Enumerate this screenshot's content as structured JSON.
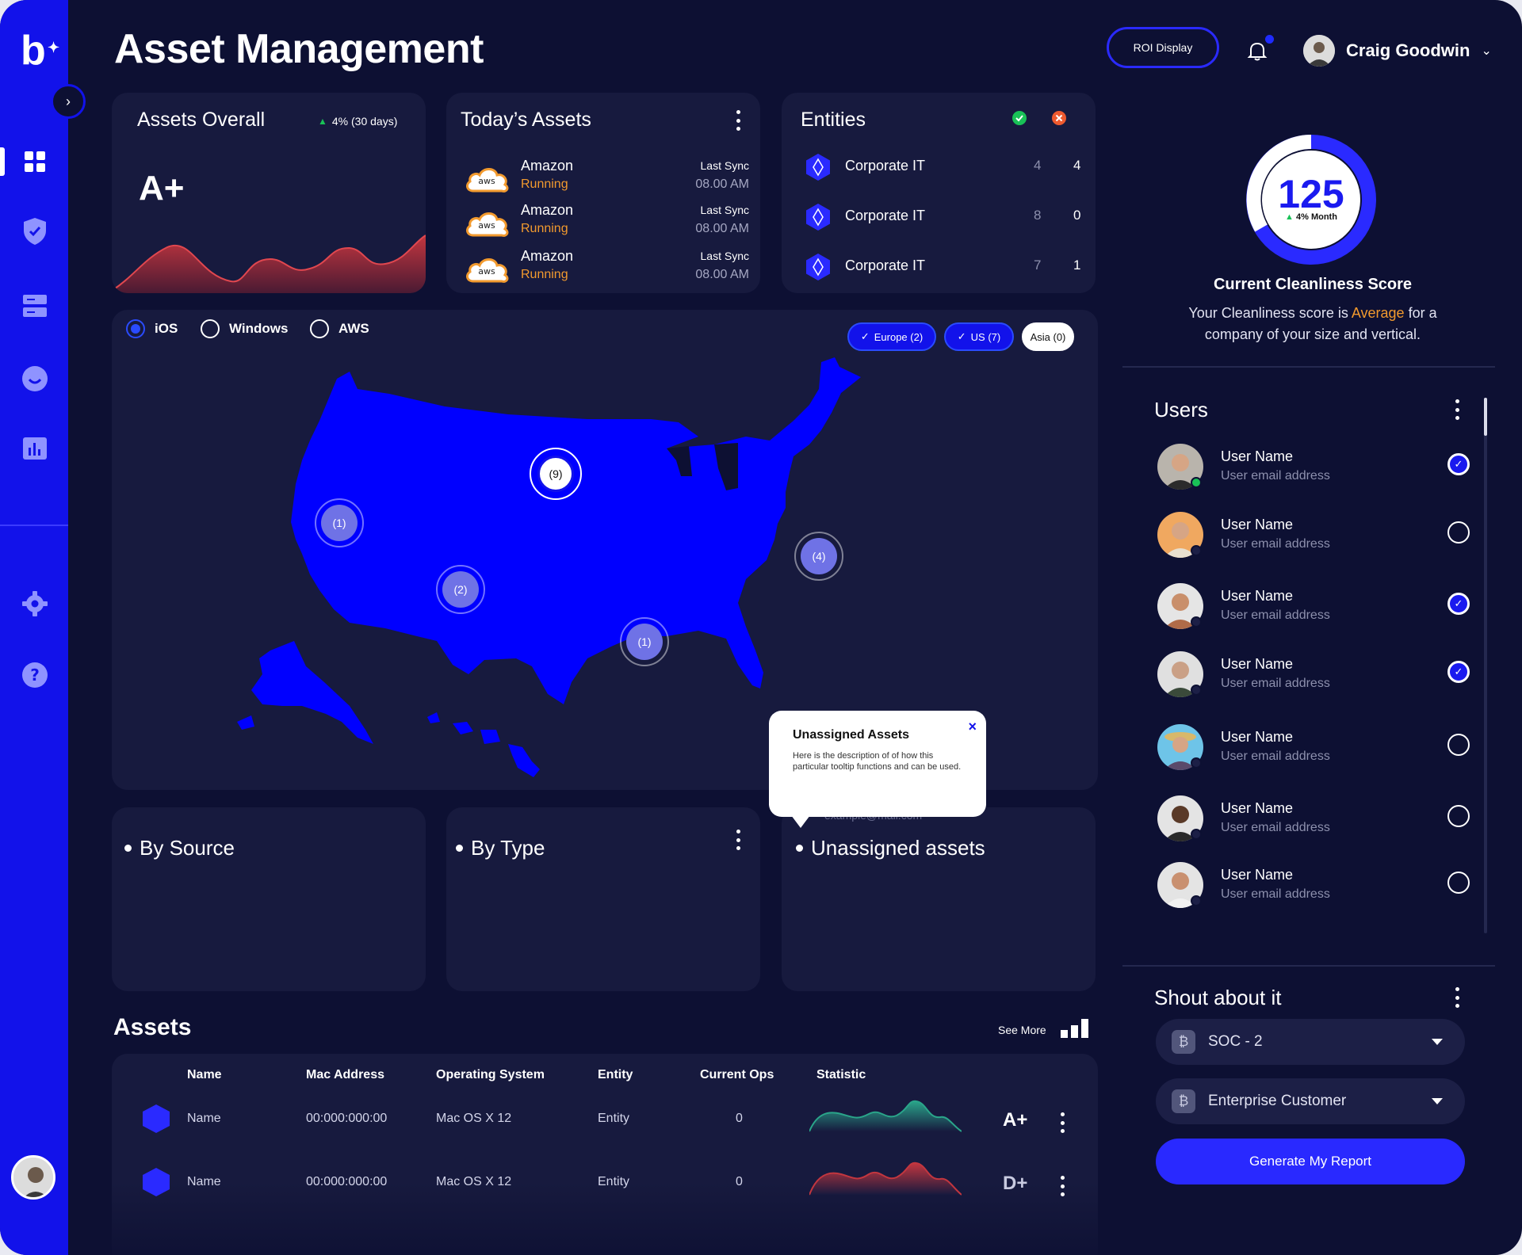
{
  "header": {
    "title": "Asset Management",
    "roi_label": "ROI Display",
    "user_name": "Craig Goodwin"
  },
  "sidebar": {
    "logo": "b",
    "items": [
      "dashboard-icon",
      "shield-icon",
      "server-icon",
      "smile-icon",
      "chart-icon",
      "settings-icon",
      "help-icon"
    ]
  },
  "assets_overall": {
    "title": "Assets Overall",
    "trend": "4% (30 days)",
    "grade": "A+"
  },
  "todays_assets": {
    "title": "Today’s Assets",
    "rows": [
      {
        "logo": "aws",
        "name": "Amazon",
        "status": "Running",
        "sync_label": "Last Sync",
        "sync_time": "08.00 AM"
      },
      {
        "logo": "aws",
        "name": "Amazon",
        "status": "Running",
        "sync_label": "Last Sync",
        "sync_time": "08.00 AM"
      },
      {
        "logo": "aws",
        "name": "Amazon",
        "status": "Running",
        "sync_label": "Last Sync",
        "sync_time": "08.00 AM"
      }
    ]
  },
  "entities": {
    "title": "Entities",
    "rows": [
      {
        "name": "Corporate IT",
        "a": "4",
        "b": "4"
      },
      {
        "name": "Corporate IT",
        "a": "8",
        "b": "0"
      },
      {
        "name": "Corporate IT",
        "a": "7",
        "b": "1"
      }
    ]
  },
  "map": {
    "radios": [
      {
        "label": "iOS",
        "selected": true
      },
      {
        "label": "Windows",
        "selected": false
      },
      {
        "label": "AWS",
        "selected": false
      }
    ],
    "chips": [
      {
        "label": "Europe (2)",
        "active": true
      },
      {
        "label": "US (7)",
        "active": true
      },
      {
        "label": "Asia (0)",
        "active": false
      }
    ],
    "clusters": [
      "(9)",
      "(1)",
      "(2)",
      "(1)",
      "(4)"
    ]
  },
  "tooltip": {
    "title": "Unassigned Assets",
    "description": "Here is the description of of how this particular tooltip functions and can be used.",
    "close": "×"
  },
  "sections": {
    "by_source": "By Source",
    "by_type": "By Type",
    "unassigned": "Unassigned assets",
    "unassigned_hint": "example@mail.com"
  },
  "assets_table": {
    "title": "Assets",
    "see_more": "See More",
    "columns": [
      "Name",
      "Mac Address",
      "Operating System",
      "Entity",
      "Current Ops",
      "Statistic"
    ],
    "rows": [
      {
        "name": "Name",
        "mac": "00:000:000:00",
        "os": "Mac OS X 12",
        "entity": "Entity",
        "ops": "0",
        "grade": "A+",
        "trend_color": "#2aa58a"
      },
      {
        "name": "Name",
        "mac": "00:000:000:00",
        "os": "Mac OS X 12",
        "entity": "Entity",
        "ops": "0",
        "grade": "D+",
        "trend_color": "#c2363f"
      }
    ]
  },
  "score": {
    "value": "125",
    "change": "4% Month",
    "title": "Current Cleanliness Score",
    "desc_pre": "Your Cleanliness score is",
    "desc_level": "Average",
    "desc_post": "for a company of your size and vertical."
  },
  "users": {
    "title": "Users",
    "items": [
      {
        "name": "User Name",
        "email": "User email address",
        "checked": true,
        "online": true
      },
      {
        "name": "User Name",
        "email": "User email address",
        "checked": false,
        "online": false
      },
      {
        "name": "User Name",
        "email": "User email address",
        "checked": true,
        "online": false
      },
      {
        "name": "User Name",
        "email": "User email address",
        "checked": true,
        "online": false
      },
      {
        "name": "User Name",
        "email": "User email address",
        "checked": false,
        "online": false
      },
      {
        "name": "User Name",
        "email": "User email address",
        "checked": false,
        "online": false
      },
      {
        "name": "User Name",
        "email": "User email address",
        "checked": false,
        "online": false
      }
    ]
  },
  "shout": {
    "title": "Shout about it",
    "selects": [
      "SOC - 2",
      "Enterprise Customer"
    ],
    "button": "Generate My Report"
  },
  "colors": {
    "accent": "#1212ea",
    "background": "#0d1033",
    "card": "#171a3e",
    "running": "#f29a2e"
  }
}
